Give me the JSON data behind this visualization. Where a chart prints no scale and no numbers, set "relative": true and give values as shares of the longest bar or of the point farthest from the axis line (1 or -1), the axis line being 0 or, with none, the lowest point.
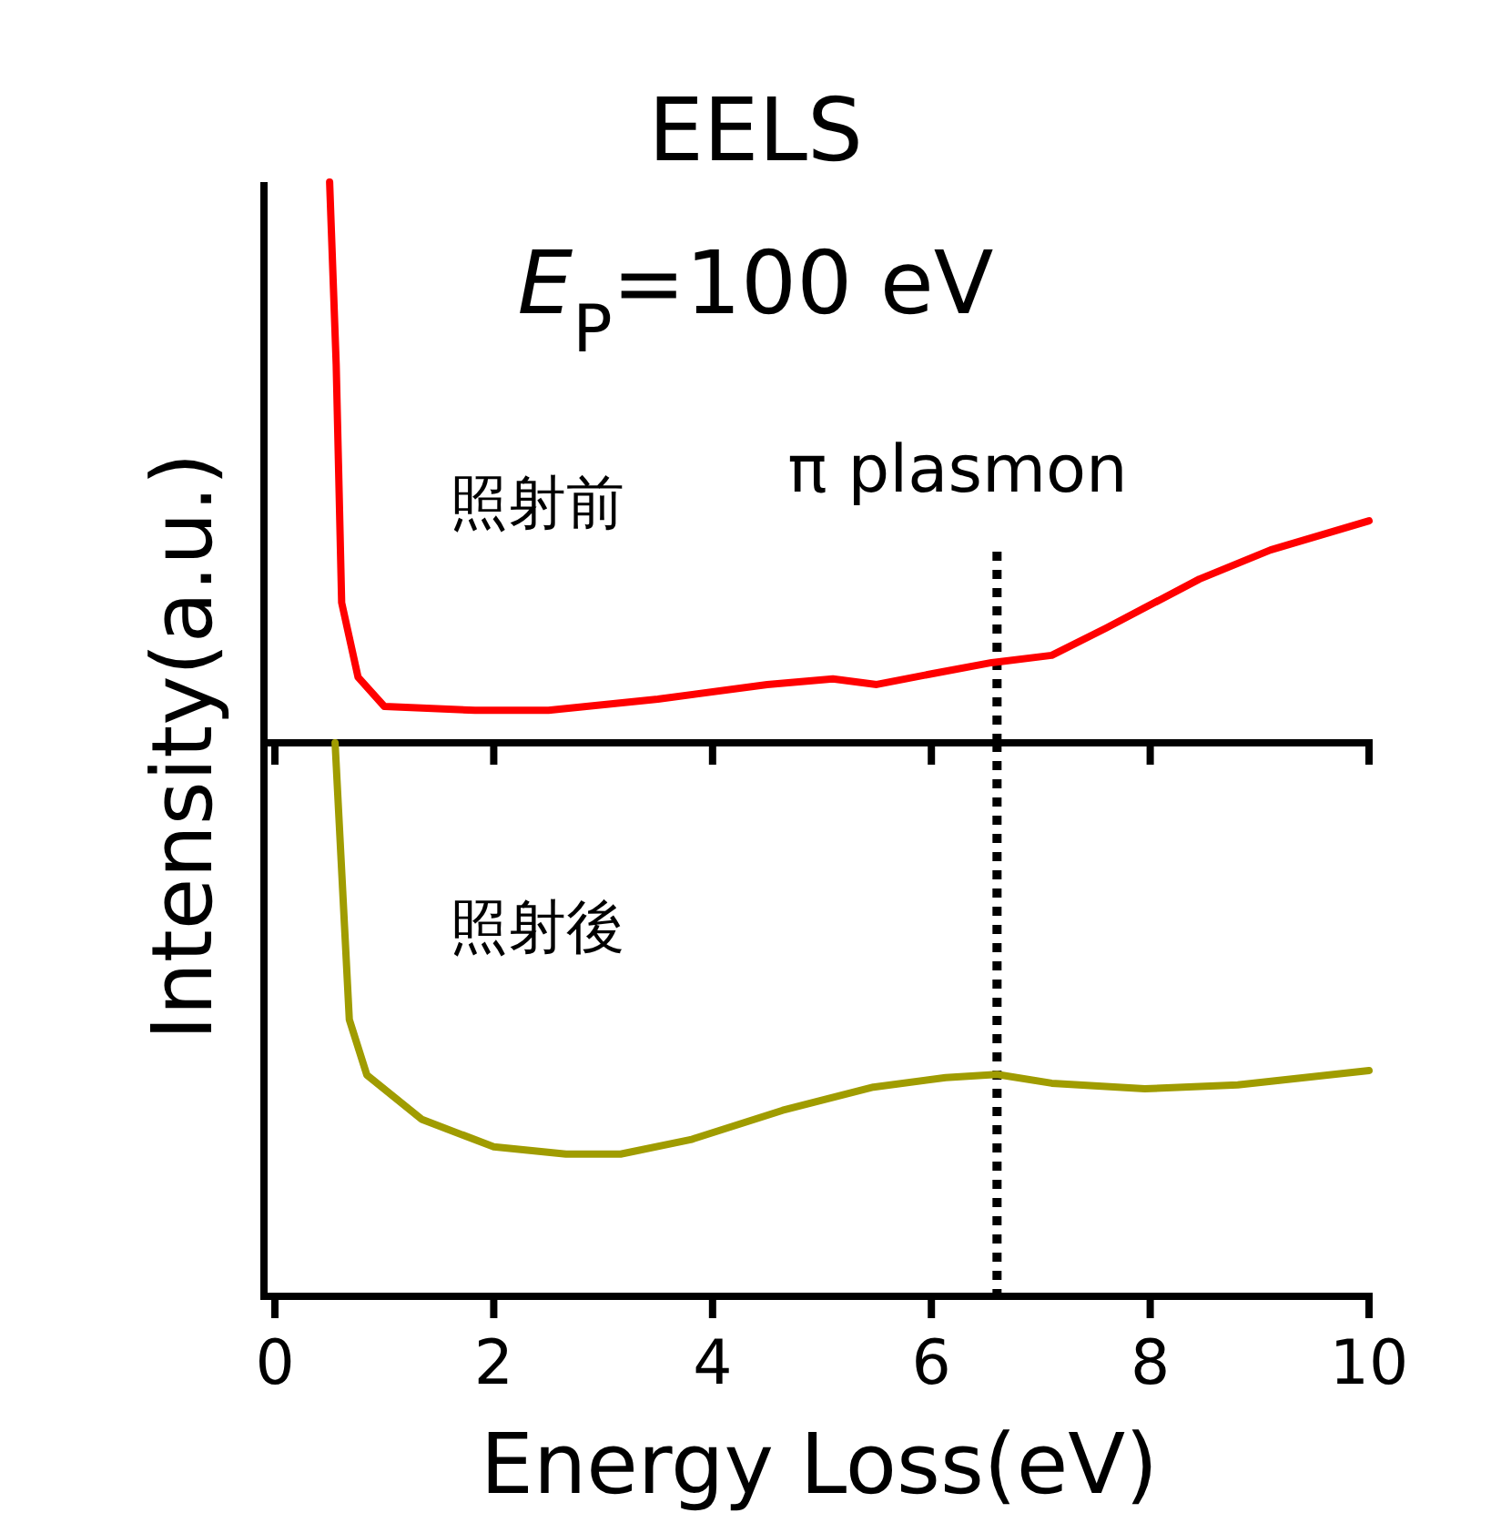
{
  "chart_data": [
    {
      "type": "line",
      "title": "EELS",
      "subtitle": "E$_{P}$=100 eV",
      "ylabel": "Intensity(a.u.)",
      "relative": true,
      "xlim": [
        -0.1,
        10
      ],
      "xticks": [
        0,
        2,
        4,
        6,
        8,
        10
      ],
      "tick_labels": false,
      "annotations": [
        "照射前"
      ],
      "ref_lines": [
        {
          "axis": "x",
          "value": 6.6,
          "label": "π plasmon",
          "line_style": "dotted",
          "color": "#000000"
        }
      ],
      "series": [
        {
          "color": "#ff0000",
          "x": [
            0.5,
            0.56,
            0.61,
            0.76,
            1.0,
            1.83,
            2.5,
            3.5,
            4.5,
            5.1,
            5.5,
            6.0,
            6.55,
            7.1,
            7.6,
            8.45,
            9.1,
            10
          ],
          "values": [
            1.0,
            0.675,
            0.25,
            0.117,
            0.065,
            0.058,
            0.058,
            0.078,
            0.104,
            0.114,
            0.104,
            0.123,
            0.143,
            0.156,
            0.205,
            0.292,
            0.344,
            0.396
          ]
        }
      ]
    },
    {
      "type": "line",
      "xlabel": "Energy Loss(eV)",
      "relative": true,
      "xlim": [
        -0.1,
        10
      ],
      "xticks": [
        0,
        2,
        4,
        6,
        8,
        10
      ],
      "tick_labels": "x",
      "annotations": [
        "照射後"
      ],
      "ref_lines": [
        {
          "axis": "x",
          "value": 6.6,
          "line_style": "dotted",
          "color": "#000000"
        }
      ],
      "series": [
        {
          "color": "#a09c00",
          "x": [
            0.55,
            0.68,
            0.84,
            1.34,
            2.0,
            2.66,
            3.16,
            3.8,
            4.64,
            5.47,
            6.13,
            6.6,
            7.1,
            7.95,
            8.8,
            10
          ],
          "values": [
            1.0,
            0.5,
            0.4,
            0.32,
            0.27,
            0.257,
            0.257,
            0.283,
            0.336,
            0.378,
            0.395,
            0.401,
            0.385,
            0.375,
            0.382,
            0.408
          ]
        }
      ]
    }
  ]
}
